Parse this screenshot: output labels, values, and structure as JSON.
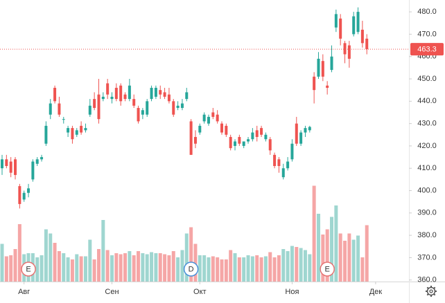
{
  "chart_data": {
    "type": "candlestick",
    "open": [
      410,
      414,
      413,
      414,
      402,
      396,
      399,
      405,
      412,
      414,
      421,
      434,
      446,
      439,
      432,
      426,
      428,
      425,
      429,
      427,
      434,
      441,
      443,
      441,
      448,
      441,
      446,
      447,
      443,
      441,
      441,
      437,
      434,
      434,
      441,
      442,
      445,
      444,
      443,
      440,
      437,
      437,
      441,
      431,
      424,
      426,
      431,
      430,
      435,
      434,
      430,
      429,
      424,
      420,
      424,
      420,
      422,
      423,
      427,
      428,
      423,
      423,
      416,
      414,
      406,
      410,
      414,
      430,
      421,
      426,
      427,
      451,
      451,
      458,
      447,
      454,
      473,
      477,
      466,
      465,
      470,
      471,
      472,
      468
    ],
    "high": [
      416,
      416,
      415,
      415,
      403,
      400,
      403,
      414,
      415,
      416,
      431,
      441,
      447,
      442,
      433,
      429,
      429,
      428,
      431,
      430,
      441,
      444,
      450,
      444,
      450,
      444,
      448,
      448,
      444,
      450,
      443,
      438,
      437,
      441,
      447,
      447,
      447,
      446,
      446,
      441,
      440,
      441,
      446,
      432,
      427,
      430,
      435,
      434,
      437,
      436,
      431,
      430,
      425,
      423,
      425,
      422,
      424,
      428,
      429,
      429,
      426,
      424,
      417,
      415,
      412,
      415,
      423,
      433,
      427,
      429,
      429,
      453,
      462,
      461,
      449,
      465,
      481,
      479,
      467,
      467,
      480,
      482,
      476,
      470
    ],
    "low": [
      407,
      410,
      406,
      405,
      392,
      395,
      397,
      404,
      411,
      413,
      420,
      432,
      439,
      433,
      430,
      424,
      421,
      424,
      425,
      426,
      433,
      436,
      430,
      440,
      441,
      439,
      440,
      438,
      440,
      440,
      437,
      430,
      432,
      433,
      440,
      441,
      441,
      441,
      439,
      433,
      436,
      436,
      440,
      416,
      419,
      425,
      430,
      429,
      432,
      430,
      425,
      424,
      418,
      418,
      420,
      419,
      421,
      422,
      422,
      424,
      422,
      416,
      410,
      408,
      405,
      409,
      413,
      420,
      420,
      424,
      426,
      439,
      450,
      449,
      443,
      453,
      471,
      465,
      457,
      455,
      469,
      470,
      464,
      461
    ],
    "close": [
      414,
      411,
      408,
      407,
      394,
      399,
      401,
      413,
      414,
      415,
      429,
      439,
      440,
      434,
      432,
      428,
      423,
      427,
      426,
      428,
      438,
      437,
      432,
      442,
      443,
      442,
      441,
      440,
      441,
      447,
      438,
      431,
      436,
      440,
      446,
      446,
      443,
      442,
      440,
      434,
      438,
      439,
      444,
      416,
      421,
      429,
      434,
      433,
      433,
      431,
      426,
      425,
      419,
      422,
      421,
      422,
      423,
      426,
      424,
      425,
      425,
      418,
      411,
      411,
      410,
      413,
      421,
      421,
      426,
      428,
      428.5,
      445,
      459,
      451,
      446,
      460,
      479,
      468,
      461,
      459,
      478,
      480,
      466,
      463.3
    ],
    "volume": [
      35,
      23,
      24,
      30,
      54,
      25,
      26,
      26,
      22,
      24,
      49,
      45,
      36,
      28,
      26,
      22,
      20,
      25,
      23,
      23,
      39,
      20,
      30,
      58,
      29,
      24,
      26,
      25,
      26,
      28,
      24,
      28,
      26,
      25,
      27,
      26,
      26,
      25,
      24,
      28,
      22,
      29,
      45,
      51,
      35,
      24,
      24,
      22,
      23,
      22,
      20,
      20,
      29,
      26,
      22,
      22,
      24,
      23,
      24,
      22,
      23,
      27,
      22,
      24,
      30,
      28,
      33,
      32,
      31,
      29,
      25,
      91,
      64,
      44,
      49,
      61,
      72,
      45,
      38,
      45,
      39,
      43,
      22,
      53
    ],
    "up_color": "#26a69a",
    "down_color": "#ef5350",
    "volume_up_color": "#9fd6d0",
    "volume_down_color": "#f5a6a6",
    "volume_ylim": [
      0,
      100
    ],
    "ylim": [
      359.3,
      485.3
    ],
    "yticks": [
      {
        "value": 360,
        "label": "360.0"
      },
      {
        "value": 370,
        "label": "370.0"
      },
      {
        "value": 380,
        "label": "380.0"
      },
      {
        "value": 390,
        "label": "390.0"
      },
      {
        "value": 400,
        "label": "400.0"
      },
      {
        "value": 410,
        "label": "410.0"
      },
      {
        "value": 420,
        "label": "420.0"
      },
      {
        "value": 430,
        "label": "430.0"
      },
      {
        "value": 440,
        "label": "440.0"
      },
      {
        "value": 450,
        "label": "450.0"
      },
      {
        "value": 460,
        "label": "460.0"
      },
      {
        "value": 470,
        "label": "470.0"
      },
      {
        "value": 480,
        "label": "480.0"
      }
    ],
    "x_axis_labels": [
      {
        "label": "Авг",
        "index": 5
      },
      {
        "label": "Сен",
        "index": 25
      },
      {
        "label": "Окт",
        "index": 45
      },
      {
        "label": "Ноя",
        "index": 66
      },
      {
        "label": "Дек",
        "index": 85
      }
    ],
    "price_line": 463.3,
    "events": [
      {
        "label": "E",
        "index": 6
      },
      {
        "label": "D",
        "index": 43
      },
      {
        "label": "E",
        "index": 74
      }
    ]
  }
}
